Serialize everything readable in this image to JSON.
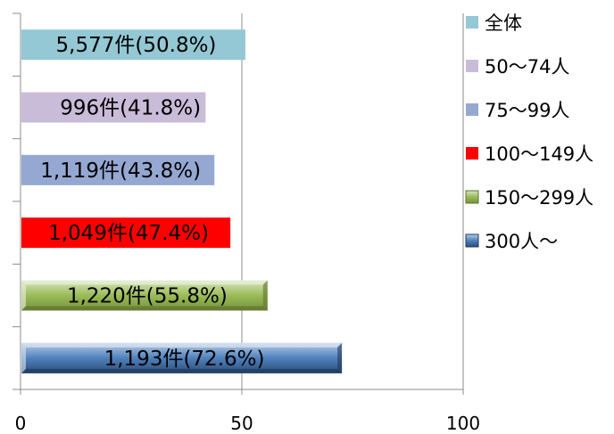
{
  "chart_data": {
    "type": "bar",
    "orientation": "horizontal",
    "categories": [
      "全体",
      "50〜74人",
      "75〜99人",
      "100〜149人",
      "150〜299人",
      "300人〜"
    ],
    "values": [
      50.8,
      41.8,
      43.8,
      47.4,
      55.8,
      72.6
    ],
    "data_labels": [
      "5,577件(50.8%)",
      "996件(41.8%)",
      "1,119件(43.8%)",
      "1,049件(47.4%)",
      "1,220件(55.8%)",
      "1,193件(72.6%)"
    ],
    "colors": [
      "#93c8d4",
      "#c9bcd9",
      "#95a8d2",
      "#ff0000",
      "#9bbb59",
      "#4f81bd"
    ],
    "styles": [
      "flat",
      "flat",
      "flat",
      "flat",
      "bevel",
      "bevel"
    ],
    "xlim": [
      0,
      100
    ],
    "xticks": [
      0,
      50,
      100
    ],
    "xtick_labels": [
      "0",
      "50",
      "100"
    ],
    "title": "",
    "xlabel": "",
    "ylabel": "",
    "grid": "vertical",
    "legend": {
      "placement": "right",
      "entries": [
        "全体",
        "50〜74人",
        "75〜99人",
        "100〜149人",
        "150〜299人",
        "300人〜"
      ]
    }
  }
}
